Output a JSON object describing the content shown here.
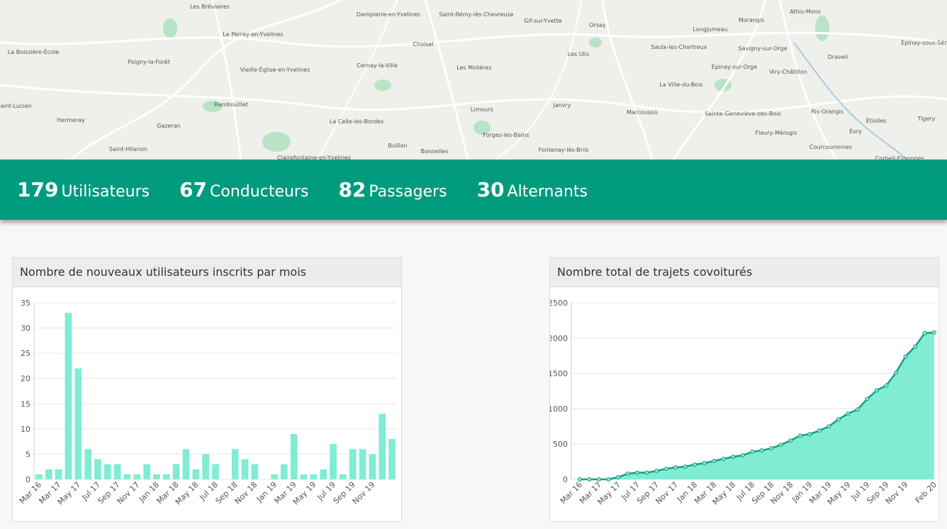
{
  "map": {
    "labels": [
      "Les Bréviaires",
      "Dampierre-en-Yvelines",
      "Saint-Rémy-lès-Chevreuse",
      "Gif-sur-Yvette",
      "Orsay",
      "Athis-Mons",
      "Morangis",
      "Longjumeau",
      "Le Perray-en-Yvelines",
      "La Boissière-École",
      "Poigny-la-Forêt",
      "Choisel",
      "Les Ulis",
      "Saulx-les-Chartreux",
      "Savigny-sur-Orge",
      "Draveil",
      "Épinay-sous-Sénart",
      "Vieille-Église-en-Yvelines",
      "Cernay-la-Ville",
      "Les Molières",
      "Épinay-sur-Orge",
      "Viry-Châtillon",
      "Rambouillet",
      "La Ville-du-Bois",
      "Saint-Lucien",
      "Hermeray",
      "Gazeran",
      "Limours",
      "Janvry",
      "Marcoussis",
      "Sainte-Geneviève-des-Bois",
      "Ris-Orangis",
      "Tigery",
      "Étiolles",
      "La Celle-les-Bordes",
      "Forges-les-Bains",
      "Fleury-Mérogis",
      "Évry",
      "Saint-Hilarion",
      "Bullion",
      "Bonnelles",
      "Fontenay-lès-Briis",
      "Courcouronnes",
      "Clairefontaine-en-Yvelines",
      "Corbeil-Essonnes"
    ]
  },
  "stats": [
    {
      "value": "179",
      "label": "Utilisateurs"
    },
    {
      "value": "67",
      "label": "Conducteurs"
    },
    {
      "value": "82",
      "label": "Passagers"
    },
    {
      "value": "30",
      "label": "Alternants"
    }
  ],
  "chart_data": [
    {
      "type": "bar",
      "title": "Nombre de nouveaux utilisateurs inscrits par mois",
      "color": "#80ecd4",
      "categories": [
        "Mar 16",
        null,
        "Mar 17",
        null,
        "May 17",
        null,
        "Jul 17",
        null,
        "Sep 17",
        null,
        "Nov 17",
        null,
        "Jan 18",
        null,
        "Mar 18",
        null,
        "May 18",
        null,
        "Jul 18",
        null,
        "Sep 18",
        null,
        "Nov 18",
        null,
        "Jan 19",
        null,
        "Mar 19",
        null,
        "May 19",
        null,
        "Jul 19",
        null,
        "Sep 19",
        null,
        "Nov 19",
        null,
        null
      ],
      "values": [
        1,
        2,
        2,
        33,
        22,
        6,
        4,
        3,
        3,
        1,
        1,
        3,
        1,
        1,
        3,
        6,
        2,
        5,
        3,
        0,
        6,
        4,
        3,
        0,
        1,
        3,
        9,
        1,
        1,
        2,
        7,
        1,
        6,
        6,
        5,
        13,
        8
      ],
      "ylim": [
        0,
        35
      ],
      "yticks": [
        0,
        5,
        10,
        15,
        20,
        25,
        30,
        35
      ],
      "grid": true
    },
    {
      "type": "area",
      "title": "Nombre total de trajets covoiturés",
      "color": "#1a9c7f",
      "fill": "#80ecd4",
      "categories": [
        "Mar 16",
        null,
        "Mar 17",
        null,
        "May 17",
        null,
        "Jul 17",
        null,
        "Sep 17",
        null,
        "Nov 17",
        null,
        "Jan 18",
        null,
        "Mar 18",
        null,
        "May 18",
        null,
        "Jul 18",
        null,
        "Sep 18",
        null,
        "Nov 18",
        null,
        "Jan 19",
        null,
        "Mar 19",
        null,
        "May 19",
        null,
        "Jul 19",
        null,
        "Sep 19",
        null,
        "Nov 19",
        null,
        null,
        "Feb 20"
      ],
      "values": [
        0,
        0,
        0,
        0,
        30,
        80,
        95,
        95,
        120,
        150,
        170,
        180,
        210,
        230,
        260,
        290,
        320,
        340,
        390,
        410,
        440,
        490,
        550,
        620,
        640,
        690,
        750,
        850,
        930,
        990,
        1140,
        1260,
        1330,
        1510,
        1740,
        1880,
        2070,
        2080
      ],
      "ylim": [
        0,
        2500
      ],
      "yticks": [
        0,
        500,
        1000,
        1500,
        2000,
        2500
      ],
      "grid": true
    }
  ]
}
